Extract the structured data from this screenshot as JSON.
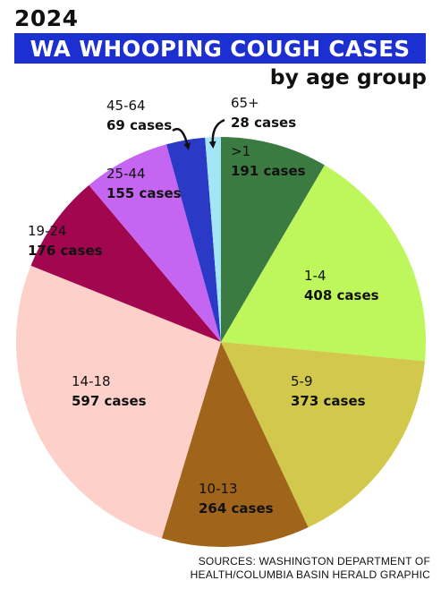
{
  "header": {
    "year": "2024",
    "title": "WA WHOOPING COUGH CASES",
    "subtitle": "by age group"
  },
  "chart_data": {
    "type": "pie",
    "slices": [
      {
        "label": ">1",
        "value": 191,
        "value_label": "191 cases",
        "color": "#3b7a40"
      },
      {
        "label": "1-4",
        "value": 408,
        "value_label": "408 cases",
        "color": "#bef75b"
      },
      {
        "label": "5-9",
        "value": 373,
        "value_label": "373 cases",
        "color": "#d2c94c"
      },
      {
        "label": "10-13",
        "value": 264,
        "value_label": "264 cases",
        "color": "#a0651b"
      },
      {
        "label": "14-18",
        "value": 597,
        "value_label": "597 cases",
        "color": "#fdd1ca"
      },
      {
        "label": "19-24",
        "value": 176,
        "value_label": "176 cases",
        "color": "#a2064e"
      },
      {
        "label": "25-44",
        "value": 155,
        "value_label": "155 cases",
        "color": "#c466f2"
      },
      {
        "label": "45-64",
        "value": 69,
        "value_label": "69 cases",
        "color": "#2b39c7"
      },
      {
        "label": "65+",
        "value": 28,
        "value_label": "28 cases",
        "color": "#a3e6f7"
      }
    ]
  },
  "footer": {
    "source_line1": "SOURCES: WASHINGTON DEPARTMENT OF",
    "source_line2": "HEALTH/COLUMBIA BASIN HERALD GRAPHIC"
  }
}
